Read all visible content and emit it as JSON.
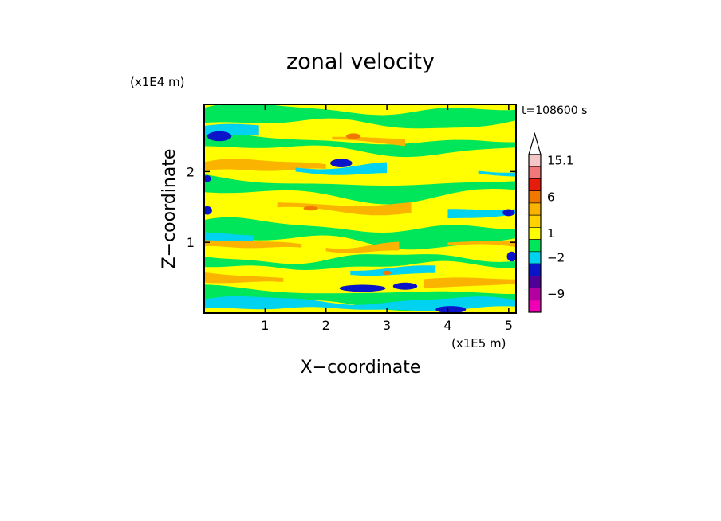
{
  "chart_data": {
    "type": "heatmap",
    "title": "zonal velocity",
    "xlabel": "X−coordinate",
    "ylabel": "Z−coordinate",
    "x_scale_note": "(x1E5 m)",
    "y_scale_note": "(x1E4 m)",
    "time_label": "t=108600 s",
    "xlim": [
      0.0,
      5.12
    ],
    "ylim": [
      0.0,
      2.95
    ],
    "x_ticks": [
      {
        "value": 1,
        "label": "1"
      },
      {
        "value": 2,
        "label": "2"
      },
      {
        "value": 3,
        "label": "3"
      },
      {
        "value": 4,
        "label": "4"
      },
      {
        "value": 5,
        "label": "5"
      }
    ],
    "y_ticks": [
      {
        "value": 1,
        "label": "1"
      },
      {
        "value": 2,
        "label": "2"
      }
    ],
    "colorbar": {
      "levels": [
        {
          "color": "#f5c6c6",
          "label": "15.1"
        },
        {
          "color": "#f07878",
          "label": ""
        },
        {
          "color": "#e81c0c",
          "label": ""
        },
        {
          "color": "#f07800",
          "label": "6"
        },
        {
          "color": "#fab400",
          "label": ""
        },
        {
          "color": "#ffd200",
          "label": ""
        },
        {
          "color": "#ffff00",
          "label": "1"
        },
        {
          "color": "#00e65a",
          "label": ""
        },
        {
          "color": "#00d2f0",
          "label": "−2"
        },
        {
          "color": "#0a14c8",
          "label": ""
        },
        {
          "color": "#500096",
          "label": ""
        },
        {
          "color": "#b400a0",
          "label": "−9"
        },
        {
          "color": "#f000b4",
          "label": ""
        }
      ]
    },
    "field_description_values": {
      "color_yellow": "#ffff00",
      "color_orange": "#fab400",
      "color_green": "#00e65a",
      "color_cyan": "#00d2f0",
      "color_blue": "#0a14c8",
      "color_red": "#f07800"
    }
  }
}
